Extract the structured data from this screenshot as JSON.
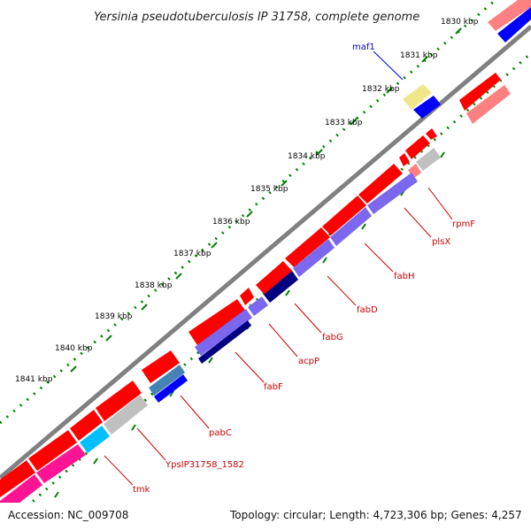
{
  "title": "Yersinia pseudotuberculosis IP 31758, complete genome",
  "ticks": [
    "1830 kbp",
    "1831 kbp",
    "1832 kbp",
    "1833 kbp",
    "1834 kbp",
    "1835 kbp",
    "1836 kbp",
    "1837 kbp",
    "1838 kbp",
    "1839 kbp",
    "1840 kbp",
    "1841 kbp"
  ],
  "genes": {
    "maf1": "maf1",
    "rpmF": "rpmF",
    "plsX": "plsX",
    "fabH": "fabH",
    "fabD": "fabD",
    "fabG": "fabG",
    "acpP": "acpP",
    "fabF": "fabF",
    "pabC": "pabC",
    "YpsIP31758_1582": "YpsIP31758_1582",
    "tmk": "tmk"
  },
  "footer": {
    "accession": "Accession: NC_009708",
    "topology": "Topology: circular; Length: 4,723,306 bp; Genes: 4,257"
  },
  "colors": {
    "cds_forward": "#ff0000",
    "cds_forward_light": "#ff8080",
    "cds_reverse": "#0000ff",
    "cds_purple": "#7b68ee",
    "cds_navy": "#000080",
    "rna_gray": "#c0c0c0",
    "cyan": "#00bfff",
    "magenta": "#ff1493",
    "khaki": "#f0e68c",
    "tick_green": "#008000",
    "backbone": "#808080"
  }
}
